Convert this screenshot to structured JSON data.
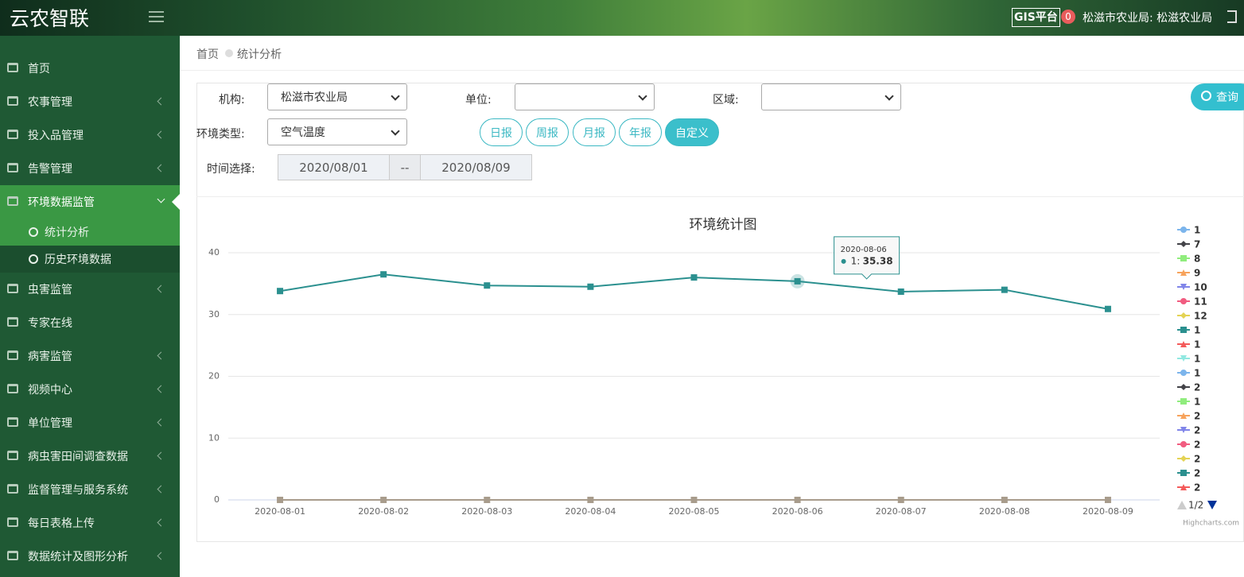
{
  "header": {
    "brand": "云农智联",
    "gis": "GIS平台",
    "badge": 0,
    "user": "松滋市农业局: 松滋农业局"
  },
  "sidebar": {
    "items": [
      {
        "label": "首页"
      },
      {
        "label": "农事管理",
        "arrow": true
      },
      {
        "label": "投入品管理",
        "arrow": true
      },
      {
        "label": "告警管理",
        "arrow": true
      },
      {
        "label": "环境数据监管",
        "arrow": true,
        "active": true,
        "children": [
          {
            "label": "统计分析",
            "active": true
          },
          {
            "label": "历史环境数据"
          }
        ]
      },
      {
        "label": "虫害监管",
        "arrow": true
      },
      {
        "label": "专家在线"
      },
      {
        "label": "病害监管",
        "arrow": true
      },
      {
        "label": "视频中心",
        "arrow": true
      },
      {
        "label": "单位管理",
        "arrow": true
      },
      {
        "label": "病虫害田间调查数据",
        "arrow": true
      },
      {
        "label": "监督管理与服务系统",
        "arrow": true
      },
      {
        "label": "每日表格上传",
        "arrow": true
      },
      {
        "label": "数据统计及图形分析",
        "arrow": true
      }
    ]
  },
  "breadcrumb": [
    "首页",
    "统计分析"
  ],
  "filters": {
    "org_label": "机构:",
    "org_value": "松滋市农业局",
    "unit_label": "单位:",
    "region_label": "区域:",
    "env_label": "环境类型:",
    "env_value": "空气温度",
    "time_label": "时间选择:",
    "start": "2020/08/01",
    "sep": "--",
    "end": "2020/08/09",
    "periods": [
      "日报",
      "周报",
      "月报",
      "年报",
      "自定义"
    ],
    "active_period": 4,
    "query": "查询"
  },
  "chart_data": {
    "type": "line",
    "title": "环境统计图",
    "x": [
      "2020-08-01",
      "2020-08-02",
      "2020-08-03",
      "2020-08-04",
      "2020-08-05",
      "2020-08-06",
      "2020-08-07",
      "2020-08-08",
      "2020-08-09"
    ],
    "ylim": [
      0,
      40
    ],
    "yticks": [
      0,
      10,
      20,
      30,
      40
    ],
    "grid": true,
    "series": [
      {
        "name": "1",
        "color": "#7cb5ec",
        "marker": "circle",
        "values": [
          null,
          null,
          null,
          null,
          null,
          null,
          null,
          null,
          null
        ]
      },
      {
        "name": "7",
        "color": "#434348",
        "marker": "diamond",
        "values": [
          null,
          null,
          null,
          null,
          null,
          null,
          null,
          null,
          null
        ]
      },
      {
        "name": "8",
        "color": "#90ed7d",
        "marker": "square",
        "values": [
          null,
          null,
          null,
          null,
          null,
          null,
          null,
          null,
          null
        ]
      },
      {
        "name": "9",
        "color": "#f7a35c",
        "marker": "triangle",
        "values": [
          null,
          null,
          null,
          null,
          null,
          null,
          null,
          null,
          null
        ]
      },
      {
        "name": "10",
        "color": "#8085e9",
        "marker": "triangle-down",
        "values": [
          null,
          null,
          null,
          null,
          null,
          null,
          null,
          null,
          null
        ]
      },
      {
        "name": "11",
        "color": "#f15c80",
        "marker": "circle",
        "values": [
          null,
          null,
          null,
          null,
          null,
          null,
          null,
          null,
          null
        ]
      },
      {
        "name": "12",
        "color": "#e4d354",
        "marker": "diamond",
        "values": [
          null,
          null,
          null,
          null,
          null,
          null,
          null,
          null,
          null
        ]
      },
      {
        "name": "1",
        "color": "#2b908f",
        "marker": "square",
        "values": [
          33.8,
          36.5,
          34.7,
          34.5,
          36.0,
          35.38,
          33.7,
          34.0,
          30.9
        ]
      },
      {
        "name": "1",
        "color": "#f45b5b",
        "marker": "triangle",
        "values": [
          null,
          null,
          null,
          null,
          null,
          null,
          null,
          null,
          null
        ]
      },
      {
        "name": "1",
        "color": "#91e8e1",
        "marker": "triangle-down",
        "values": [
          null,
          null,
          null,
          null,
          null,
          null,
          null,
          null,
          null
        ]
      },
      {
        "name": "1",
        "color": "#7cb5ec",
        "marker": "circle",
        "values": [
          null,
          null,
          null,
          null,
          null,
          null,
          null,
          null,
          null
        ]
      },
      {
        "name": "2",
        "color": "#434348",
        "marker": "diamond",
        "values": [
          null,
          null,
          null,
          null,
          null,
          null,
          null,
          null,
          null
        ]
      },
      {
        "name": "1",
        "color": "#90ed7d",
        "marker": "square",
        "values": [
          null,
          null,
          null,
          null,
          null,
          null,
          null,
          null,
          null
        ]
      },
      {
        "name": "2",
        "color": "#f7a35c",
        "marker": "triangle",
        "values": [
          null,
          null,
          null,
          null,
          null,
          null,
          null,
          null,
          null
        ]
      },
      {
        "name": "2",
        "color": "#8085e9",
        "marker": "triangle-down",
        "values": [
          null,
          null,
          null,
          null,
          null,
          null,
          null,
          null,
          null
        ]
      },
      {
        "name": "2",
        "color": "#f15c80",
        "marker": "circle",
        "values": [
          null,
          null,
          null,
          null,
          null,
          null,
          null,
          null,
          null
        ]
      },
      {
        "name": "2",
        "color": "#e4d354",
        "marker": "diamond",
        "values": [
          null,
          null,
          null,
          null,
          null,
          null,
          null,
          null,
          null
        ]
      },
      {
        "name": "2",
        "color": "#2b908f",
        "marker": "square",
        "values": [
          null,
          null,
          null,
          null,
          null,
          null,
          null,
          null,
          null
        ]
      },
      {
        "name": "2",
        "color": "#f45b5b",
        "marker": "triangle",
        "values": [
          null,
          null,
          null,
          null,
          null,
          null,
          null,
          null,
          null
        ]
      },
      {
        "color": "#a89c8c",
        "marker": "square",
        "values": [
          0,
          0,
          0,
          0,
          0,
          0,
          0,
          0,
          0
        ]
      }
    ],
    "tooltip": {
      "x": "2020-08-06",
      "series": "1:",
      "value": 35.38
    },
    "legend_page": "1/2",
    "credits": "Highcharts.com"
  }
}
